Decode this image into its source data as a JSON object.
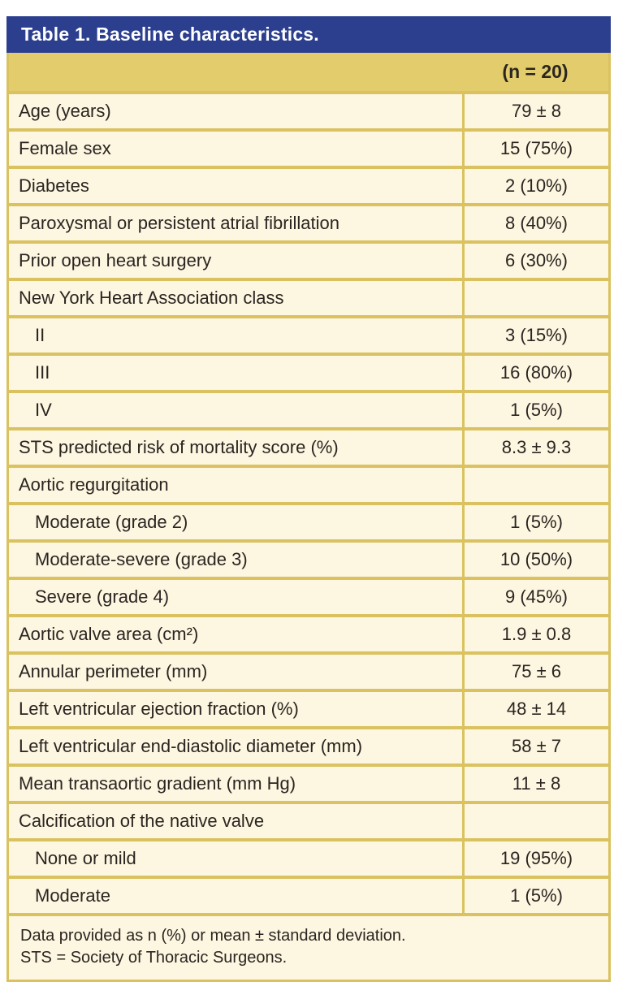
{
  "title": "Table 1. Baseline characteristics.",
  "column_header": "(n = 20)",
  "rows": [
    {
      "label": "Age (years)",
      "value": "79 ± 8",
      "indent": false
    },
    {
      "label": "Female sex",
      "value": "15 (75%)",
      "indent": false
    },
    {
      "label": "Diabetes",
      "value": "2 (10%)",
      "indent": false
    },
    {
      "label": "Paroxysmal or persistent atrial fibrillation",
      "value": "8 (40%)",
      "indent": false
    },
    {
      "label": "Prior open heart surgery",
      "value": "6 (30%)",
      "indent": false
    },
    {
      "label": "New York Heart Association class",
      "value": "",
      "indent": false
    },
    {
      "label": "II",
      "value": "3 (15%)",
      "indent": true
    },
    {
      "label": "III",
      "value": "16 (80%)",
      "indent": true
    },
    {
      "label": "IV",
      "value": "1 (5%)",
      "indent": true
    },
    {
      "label": "STS predicted risk of mortality score (%)",
      "value": "8.3 ± 9.3",
      "indent": false
    },
    {
      "label": "Aortic regurgitation",
      "value": "",
      "indent": false
    },
    {
      "label": "Moderate (grade 2)",
      "value": "1 (5%)",
      "indent": true
    },
    {
      "label": "Moderate-severe (grade 3)",
      "value": "10 (50%)",
      "indent": true
    },
    {
      "label": "Severe (grade 4)",
      "value": "9 (45%)",
      "indent": true
    },
    {
      "label": "Aortic valve area (cm²)",
      "value": "1.9 ± 0.8",
      "indent": false
    },
    {
      "label": "Annular perimeter (mm)",
      "value": "75 ± 6",
      "indent": false
    },
    {
      "label": "Left ventricular ejection fraction (%)",
      "value": "48 ± 14",
      "indent": false
    },
    {
      "label": "Left ventricular end-diastolic diameter (mm)",
      "value": "58 ± 7",
      "indent": false
    },
    {
      "label": "Mean transaortic gradient (mm Hg)",
      "value": "11 ± 8",
      "indent": false
    },
    {
      "label": "Calcification of the native valve",
      "value": "",
      "indent": false
    },
    {
      "label": "None or mild",
      "value": "19 (95%)",
      "indent": true
    },
    {
      "label": "Moderate",
      "value": "1 (5%)",
      "indent": true
    }
  ],
  "footnotes": [
    "Data provided as n (%) or mean ± standard deviation.",
    "STS = Society of Thoracic Surgeons."
  ],
  "colors": {
    "header_bg": "#2c3f8e",
    "border_gold": "#d9c25f",
    "gold_row": "#e3cc6b",
    "cream": "#fdf6e1",
    "ink": "#2a2521"
  }
}
